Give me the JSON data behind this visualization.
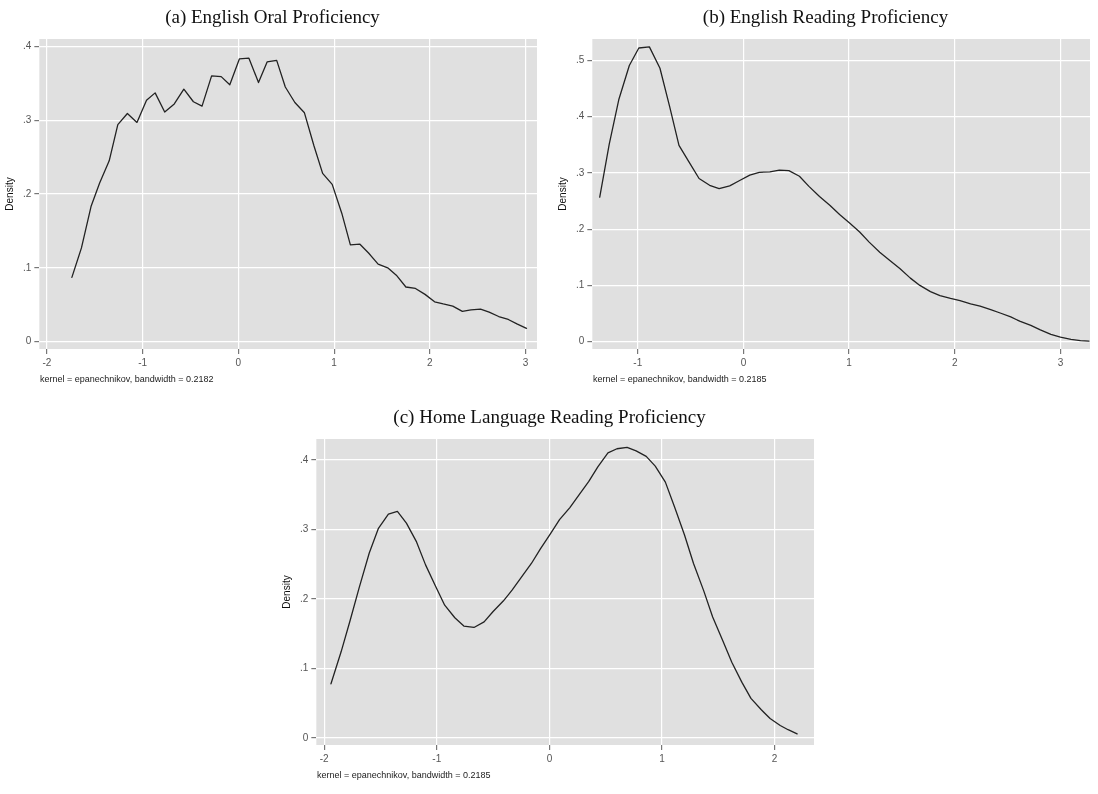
{
  "chart_data": [
    {
      "type": "line",
      "title": "(a) English Oral Proficiency",
      "ylabel": "Density",
      "annotations": [
        "kernel = epanechnikov, bandwidth = 0.2182"
      ],
      "grid": true,
      "marker": "none",
      "line_style": "solid",
      "xlim": [
        -2.08,
        3.12
      ],
      "ylim": [
        -0.01,
        0.41
      ],
      "xticks": [
        -2,
        -1,
        0,
        1,
        2,
        3
      ],
      "yticks": [
        {
          "value": 0,
          "label": "0"
        },
        {
          "value": 0.1,
          "label": ".1"
        },
        {
          "value": 0.2,
          "label": ".2"
        },
        {
          "value": 0.3,
          "label": ".3"
        },
        {
          "value": 0.4,
          "label": ".4"
        }
      ],
      "x": [
        -1.74,
        -1.64,
        -1.54,
        -1.45,
        -1.35,
        -1.26,
        -1.16,
        -1.06,
        -0.96,
        -0.87,
        -0.77,
        -0.67,
        -0.57,
        -0.47,
        -0.38,
        -0.28,
        -0.18,
        -0.09,
        0.01,
        0.11,
        0.21,
        0.3,
        0.4,
        0.49,
        0.59,
        0.69,
        0.79,
        0.88,
        0.98,
        1.08,
        1.17,
        1.27,
        1.36,
        1.46,
        1.56,
        1.65,
        1.75,
        1.85,
        1.95,
        2.05,
        2.14,
        2.24,
        2.34,
        2.43,
        2.53,
        2.62,
        2.72,
        2.82,
        2.91,
        3.01
      ],
      "series": [
        {
          "color": "#222222",
          "values": [
            0.087,
            0.127,
            0.183,
            0.215,
            0.245,
            0.294,
            0.309,
            0.297,
            0.327,
            0.337,
            0.311,
            0.322,
            0.342,
            0.325,
            0.319,
            0.36,
            0.359,
            0.348,
            0.383,
            0.384,
            0.351,
            0.379,
            0.381,
            0.345,
            0.324,
            0.31,
            0.265,
            0.228,
            0.213,
            0.174,
            0.131,
            0.132,
            0.12,
            0.105,
            0.1,
            0.09,
            0.074,
            0.072,
            0.064,
            0.054,
            0.051,
            0.048,
            0.041,
            0.043,
            0.044,
            0.04,
            0.034,
            0.03,
            0.024,
            0.018
          ]
        }
      ]
    },
    {
      "type": "line",
      "title": "(b) English Reading Proficiency",
      "ylabel": "Density",
      "annotations": [
        "kernel = epanechnikov, bandwidth = 0.2185"
      ],
      "grid": true,
      "marker": "none",
      "line_style": "solid",
      "xlim": [
        -1.43,
        3.28
      ],
      "ylim": [
        -0.013,
        0.538
      ],
      "xticks": [
        -1,
        0,
        1,
        2,
        3
      ],
      "yticks": [
        {
          "value": 0,
          "label": "0"
        },
        {
          "value": 0.1,
          "label": ".1"
        },
        {
          "value": 0.2,
          "label": ".2"
        },
        {
          "value": 0.3,
          "label": ".3"
        },
        {
          "value": 0.4,
          "label": ".4"
        },
        {
          "value": 0.5,
          "label": ".5"
        }
      ],
      "x": [
        -1.36,
        -1.27,
        -1.18,
        -1.08,
        -0.99,
        -0.89,
        -0.79,
        -0.7,
        -0.61,
        -0.52,
        -0.42,
        -0.32,
        -0.23,
        -0.13,
        -0.04,
        0.06,
        0.15,
        0.25,
        0.34,
        0.43,
        0.53,
        0.62,
        0.72,
        0.82,
        0.91,
        1.01,
        1.1,
        1.19,
        1.29,
        1.38,
        1.48,
        1.58,
        1.67,
        1.77,
        1.86,
        1.96,
        2.05,
        2.15,
        2.24,
        2.34,
        2.43,
        2.53,
        2.62,
        2.72,
        2.81,
        2.91,
        3.0,
        3.1,
        3.19,
        3.27
      ],
      "series": [
        {
          "color": "#222222",
          "values": [
            0.257,
            0.351,
            0.43,
            0.491,
            0.522,
            0.524,
            0.486,
            0.419,
            0.349,
            0.321,
            0.29,
            0.278,
            0.272,
            0.277,
            0.286,
            0.296,
            0.301,
            0.302,
            0.305,
            0.304,
            0.294,
            0.276,
            0.258,
            0.242,
            0.226,
            0.21,
            0.195,
            0.177,
            0.159,
            0.145,
            0.13,
            0.113,
            0.1,
            0.089,
            0.082,
            0.077,
            0.073,
            0.067,
            0.063,
            0.057,
            0.051,
            0.044,
            0.036,
            0.029,
            0.021,
            0.013,
            0.008,
            0.004,
            0.002,
            0.001
          ]
        }
      ]
    },
    {
      "type": "line",
      "title": "(c) Home Language Reading Proficiency",
      "ylabel": "Density",
      "annotations": [
        "kernel = epanechnikov, bandwidth = 0.2185"
      ],
      "grid": true,
      "marker": "none",
      "line_style": "solid",
      "xlim": [
        -2.07,
        2.35
      ],
      "ylim": [
        -0.01,
        0.43
      ],
      "xticks": [
        -2,
        -1,
        0,
        1,
        2
      ],
      "yticks": [
        {
          "value": 0,
          "label": "0"
        },
        {
          "value": 0.1,
          "label": ".1"
        },
        {
          "value": 0.2,
          "label": ".2"
        },
        {
          "value": 0.3,
          "label": ".3"
        },
        {
          "value": 0.4,
          "label": ".4"
        }
      ],
      "x": [
        -1.94,
        -1.85,
        -1.77,
        -1.69,
        -1.6,
        -1.52,
        -1.43,
        -1.35,
        -1.27,
        -1.18,
        -1.1,
        -1.01,
        -0.93,
        -0.84,
        -0.76,
        -0.67,
        -0.58,
        -0.5,
        -0.41,
        -0.33,
        -0.25,
        -0.16,
        -0.08,
        0.01,
        0.09,
        0.18,
        0.26,
        0.35,
        0.43,
        0.52,
        0.6,
        0.69,
        0.77,
        0.86,
        0.94,
        1.03,
        1.11,
        1.2,
        1.28,
        1.37,
        1.45,
        1.54,
        1.62,
        1.71,
        1.79,
        1.88,
        1.96,
        2.05,
        2.12,
        2.2
      ],
      "series": [
        {
          "color": "#222222",
          "values": [
            0.078,
            0.124,
            0.169,
            0.216,
            0.266,
            0.301,
            0.322,
            0.326,
            0.309,
            0.282,
            0.249,
            0.218,
            0.191,
            0.173,
            0.161,
            0.159,
            0.167,
            0.182,
            0.197,
            0.213,
            0.231,
            0.251,
            0.272,
            0.294,
            0.314,
            0.331,
            0.349,
            0.369,
            0.39,
            0.41,
            0.416,
            0.418,
            0.413,
            0.405,
            0.391,
            0.368,
            0.333,
            0.292,
            0.251,
            0.212,
            0.174,
            0.14,
            0.109,
            0.08,
            0.057,
            0.041,
            0.028,
            0.018,
            0.012,
            0.006
          ]
        }
      ]
    }
  ]
}
